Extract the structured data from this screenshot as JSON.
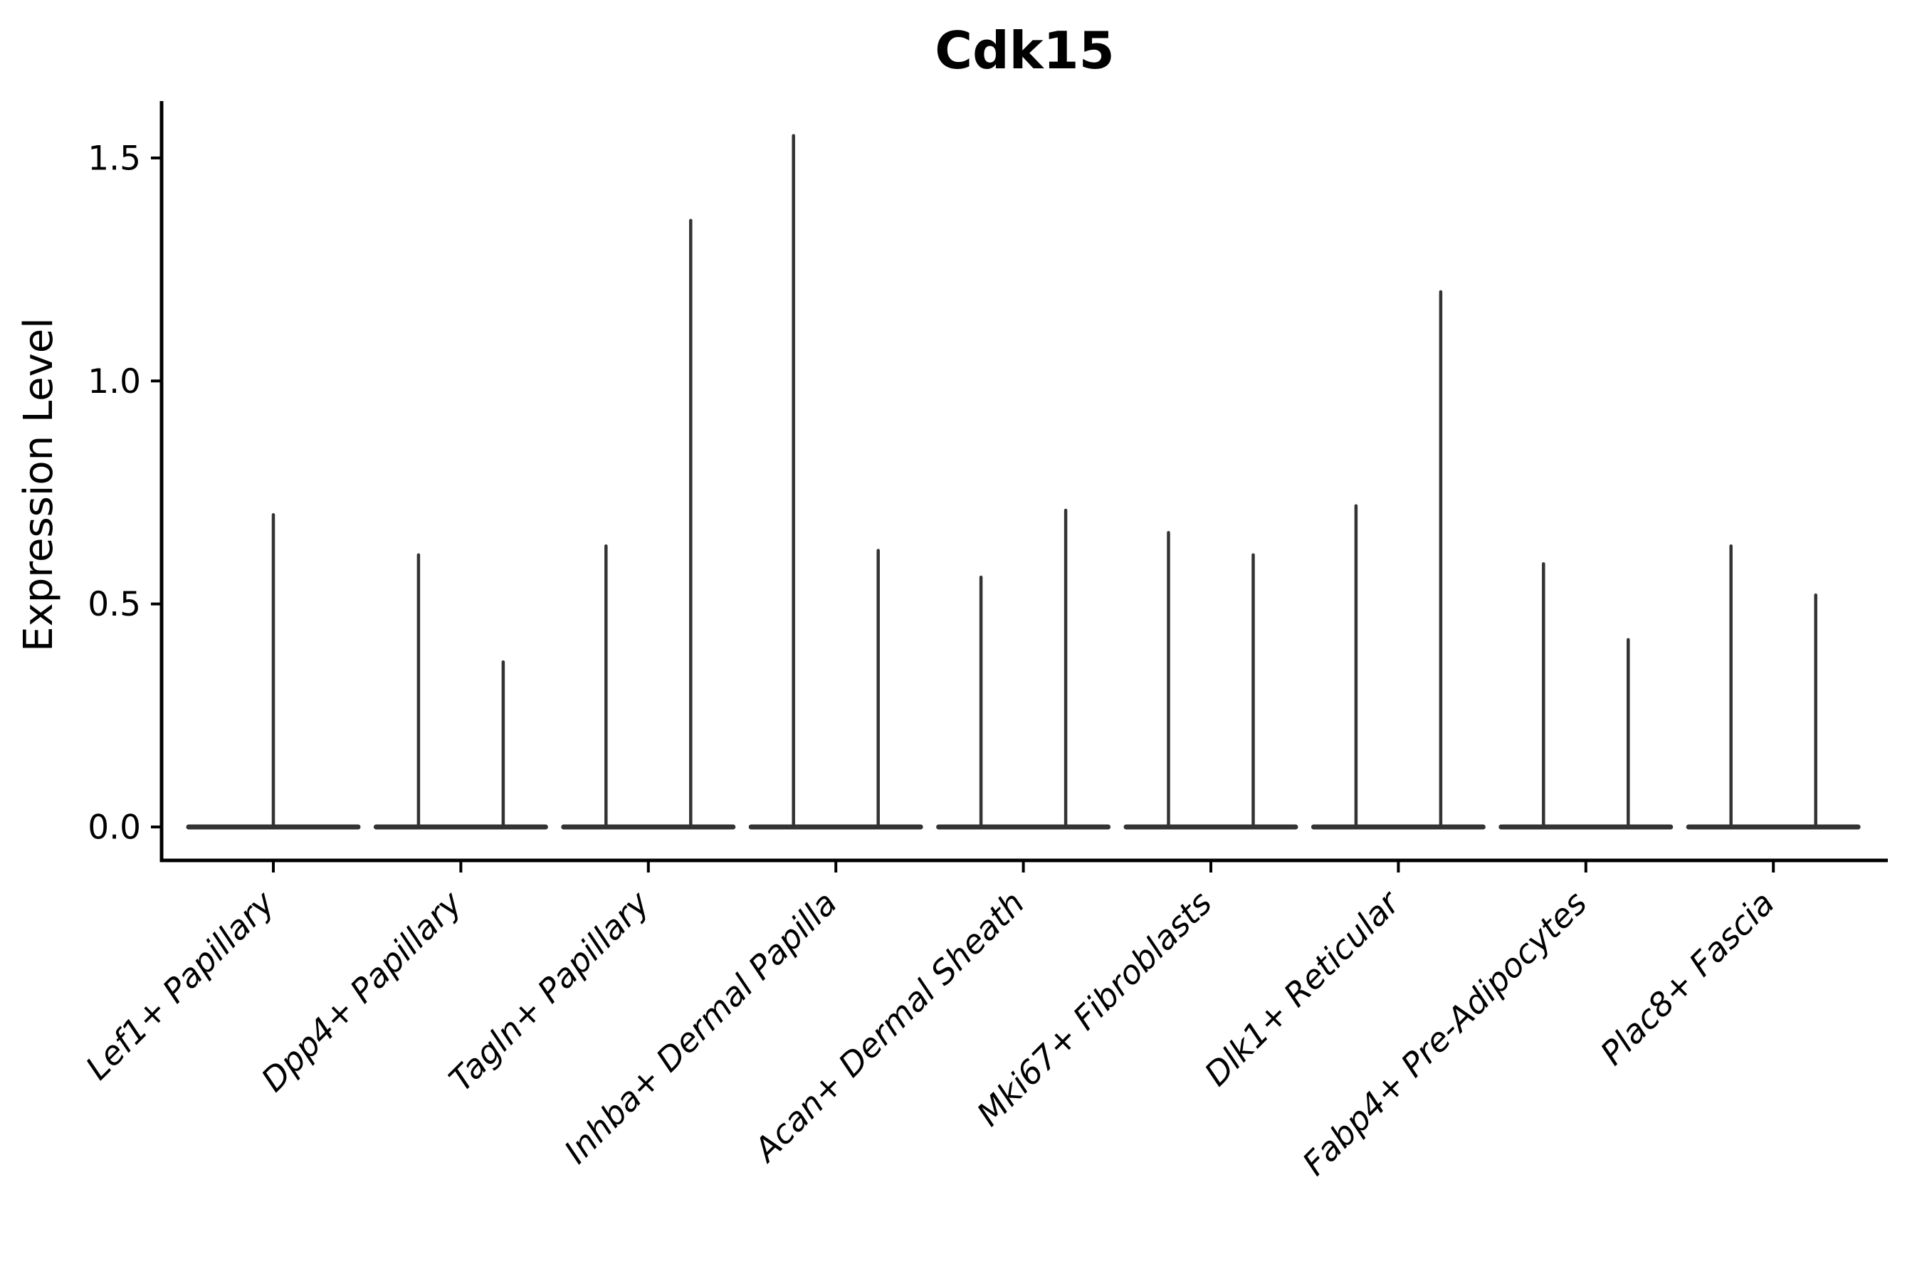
{
  "chart_data": {
    "type": "violin",
    "title": "Cdk15",
    "ylabel": "Expression Level",
    "xlabel": "",
    "yticks": [
      0.0,
      0.5,
      1.0,
      1.5
    ],
    "ylim": [
      -0.075,
      1.63
    ],
    "grid": false,
    "legend": "none",
    "categories": [
      "Lef1+ Papillary",
      "Dpp4+ Papillary",
      "Tagln+ Papillary",
      "Inhba+ Dermal Papilla",
      "Acan+ Dermal Sheath",
      "Mki67+ Fibroblasts",
      "Dlk1+ Reticular",
      "Fabp4+ Pre-Adipocytes",
      "Plac8+ Fascia"
    ],
    "violin_max_expression": [
      [
        0.7
      ],
      [
        0.61,
        0.37
      ],
      [
        0.63,
        1.36
      ],
      [
        1.55,
        0.62
      ],
      [
        0.56,
        0.71
      ],
      [
        0.66,
        0.61
      ],
      [
        0.72,
        1.2
      ],
      [
        0.59,
        0.42
      ],
      [
        0.63,
        0.52
      ]
    ],
    "violin_baseline_value": 0.0,
    "colors": {
      "violin_line": "#333333",
      "axis": "#000000",
      "text": "#000000"
    }
  }
}
